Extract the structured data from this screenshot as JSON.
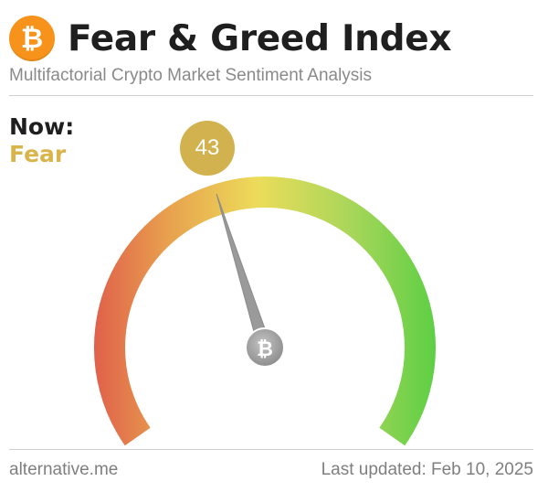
{
  "header": {
    "logo_glyph": "₿",
    "title": "Fear & Greed Index",
    "subtitle": "Multifactorial Crypto Market Sentiment Analysis"
  },
  "current": {
    "label": "Now:",
    "classification": "Fear",
    "value": "43",
    "gauge_level": 0.43
  },
  "gauge": {
    "center_glyph": "₿",
    "colors": {
      "extreme_fear": "#e0614b",
      "fear": "#e8a24e",
      "neutral": "#ecdc5a",
      "greed": "#a9d65a",
      "extreme_greed": "#5fcf45",
      "bubble": "#d2b24e",
      "classification_text": "#d9b44a",
      "needle": "#9a9a9a"
    }
  },
  "footer": {
    "source": "alternative.me",
    "updated": "Last updated: Feb 10, 2025"
  }
}
